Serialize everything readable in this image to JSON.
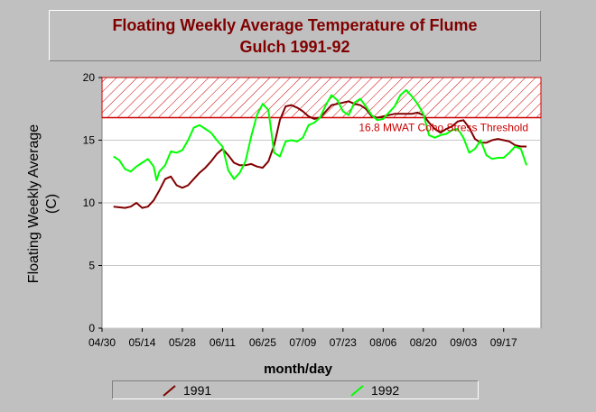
{
  "chart_data": {
    "type": "line",
    "title_line1": "Floating Weekly Average Temperature of Flume",
    "title_line2": "Gulch 1991-92",
    "xlabel": "month/day",
    "ylabel_line1": "Floating Weekly Average",
    "ylabel_line2": "(C)",
    "ylim": [
      0,
      20
    ],
    "y_ticks": [
      "0",
      "5",
      "10",
      "15",
      "20"
    ],
    "x_ticks": [
      "04/30",
      "05/14",
      "05/28",
      "06/11",
      "06/25",
      "07/09",
      "07/23",
      "08/06",
      "08/20",
      "09/03",
      "09/17"
    ],
    "x_start": "04/30",
    "x_end": "09/30",
    "grid": true,
    "threshold": {
      "label": "16.8 MWAT Coho Stress Threshold",
      "value": 16.8,
      "band_upper": 20,
      "color": "#cc0000"
    },
    "legend_position": "bottom",
    "series": [
      {
        "name": "1991",
        "color": "#800000",
        "dates": [
          "05/04",
          "05/08",
          "05/10",
          "05/12",
          "05/14",
          "05/16",
          "05/18",
          "05/20",
          "05/22",
          "05/24",
          "05/26",
          "05/28",
          "05/30",
          "06/01",
          "06/03",
          "06/05",
          "06/07",
          "06/09",
          "06/11",
          "06/13",
          "06/15",
          "06/17",
          "06/19",
          "06/21",
          "06/23",
          "06/25",
          "06/27",
          "06/29",
          "07/01",
          "07/03",
          "07/05",
          "07/07",
          "07/09",
          "07/11",
          "07/13",
          "07/15",
          "07/17",
          "07/19",
          "07/21",
          "07/23",
          "07/25",
          "07/27",
          "07/29",
          "07/31",
          "08/02",
          "08/04",
          "08/06",
          "08/08",
          "08/10",
          "08/12",
          "08/14",
          "08/16",
          "08/18",
          "08/20",
          "08/22",
          "08/24",
          "08/26",
          "08/28",
          "08/30",
          "09/01",
          "09/03",
          "09/05",
          "09/07",
          "09/09",
          "09/11",
          "09/13",
          "09/15",
          "09/17",
          "09/19",
          "09/21",
          "09/23",
          "09/25"
        ],
        "values": [
          9.7,
          9.6,
          9.7,
          10.0,
          9.6,
          9.7,
          10.2,
          11.0,
          11.9,
          12.1,
          11.4,
          11.2,
          11.4,
          11.9,
          12.4,
          12.8,
          13.3,
          13.9,
          14.3,
          13.8,
          13.2,
          13.0,
          13.0,
          13.1,
          12.9,
          12.8,
          13.3,
          14.6,
          16.6,
          17.7,
          17.8,
          17.6,
          17.3,
          16.9,
          16.7,
          16.8,
          17.3,
          17.8,
          17.9,
          18.0,
          18.1,
          17.9,
          17.8,
          17.5,
          16.9,
          16.8,
          16.9,
          17.0,
          17.1,
          17.1,
          17.1,
          17.1,
          17.2,
          17.0,
          16.4,
          15.9,
          15.6,
          15.9,
          16.1,
          16.5,
          16.6,
          16.0,
          15.1,
          14.8,
          14.8,
          15.0,
          15.1,
          15.0,
          14.9,
          14.6,
          14.5,
          14.5
        ]
      },
      {
        "name": "1992",
        "color": "#00ff00",
        "dates": [
          "05/04",
          "05/06",
          "05/08",
          "05/10",
          "05/12",
          "05/14",
          "05/16",
          "05/18",
          "05/19",
          "05/20",
          "05/22",
          "05/24",
          "05/26",
          "05/28",
          "05/30",
          "06/01",
          "06/03",
          "06/05",
          "06/07",
          "06/09",
          "06/11",
          "06/13",
          "06/15",
          "06/17",
          "06/19",
          "06/21",
          "06/23",
          "06/25",
          "06/27",
          "06/29",
          "07/01",
          "07/03",
          "07/05",
          "07/07",
          "07/09",
          "07/11",
          "07/13",
          "07/15",
          "07/17",
          "07/19",
          "07/21",
          "07/23",
          "07/25",
          "07/27",
          "07/29",
          "07/31",
          "08/02",
          "08/04",
          "08/06",
          "08/08",
          "08/10",
          "08/12",
          "08/14",
          "08/16",
          "08/18",
          "08/20",
          "08/22",
          "08/24",
          "08/26",
          "08/28",
          "08/30",
          "09/01",
          "09/03",
          "09/05",
          "09/07",
          "09/09",
          "09/11",
          "09/13",
          "09/15",
          "09/17",
          "09/19",
          "09/21",
          "09/23",
          "09/25"
        ],
        "values": [
          13.7,
          13.4,
          12.7,
          12.5,
          12.9,
          13.2,
          13.5,
          12.9,
          11.8,
          12.5,
          13.0,
          14.1,
          14.0,
          14.2,
          15.0,
          16.0,
          16.2,
          15.9,
          15.6,
          15.0,
          14.5,
          12.6,
          11.9,
          12.4,
          13.3,
          15.3,
          17.0,
          17.9,
          17.4,
          14.0,
          13.7,
          14.9,
          15.0,
          14.9,
          15.2,
          16.2,
          16.4,
          16.8,
          17.8,
          18.6,
          18.2,
          17.3,
          17.0,
          18.0,
          18.3,
          17.7,
          17.0,
          16.6,
          16.7,
          17.2,
          17.7,
          18.6,
          19.0,
          18.5,
          17.9,
          17.1,
          15.4,
          15.2,
          15.4,
          15.5,
          15.8,
          15.9,
          15.2,
          14.0,
          14.3,
          15.0,
          13.8,
          13.5,
          13.6,
          13.6,
          14.0,
          14.5,
          14.3,
          13.0
        ]
      }
    ]
  }
}
